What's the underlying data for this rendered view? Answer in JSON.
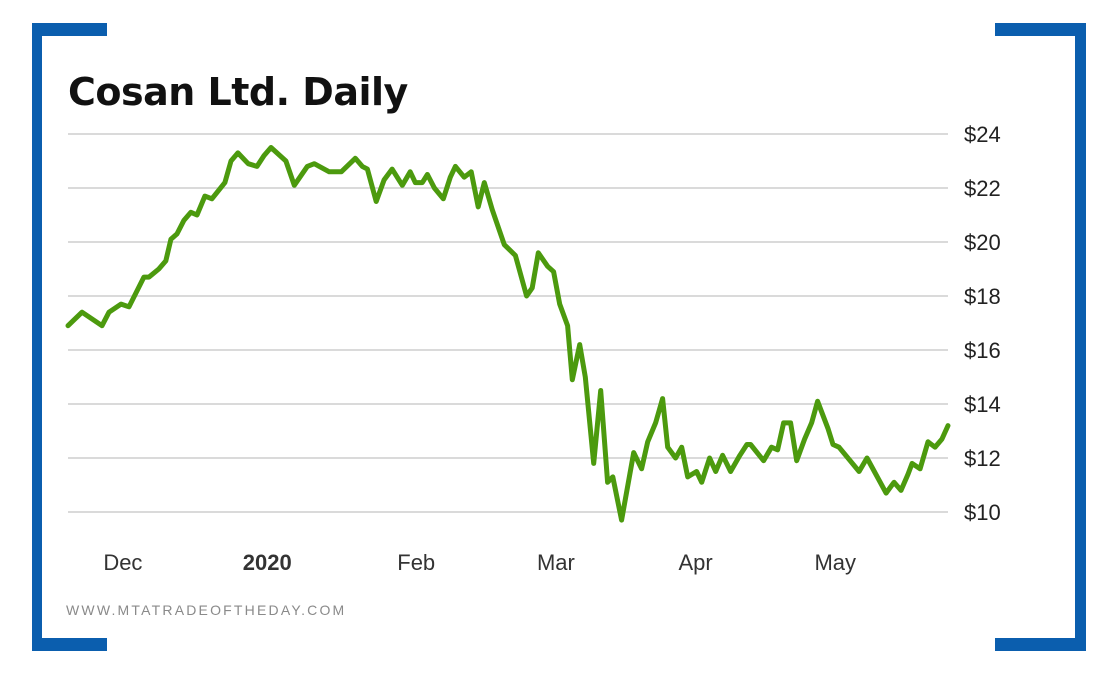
{
  "chart_data": {
    "type": "line",
    "title": "Cosan Ltd. Daily",
    "xlabel": "",
    "ylabel": "",
    "x_units": "days since Dec 1, 2019 (approx.)",
    "ylim": [
      10,
      24
    ],
    "yticks": [
      10,
      12,
      14,
      16,
      18,
      20,
      22,
      24
    ],
    "ytick_labels": [
      "$10",
      "$12",
      "$14",
      "$16",
      "$18",
      "$20",
      "$22",
      "$24"
    ],
    "xticks": [
      {
        "x": 0,
        "label": "Dec",
        "bold": false
      },
      {
        "x": 31,
        "label": "2020",
        "bold": true
      },
      {
        "x": 63,
        "label": "Feb",
        "bold": false
      },
      {
        "x": 93,
        "label": "Mar",
        "bold": false
      },
      {
        "x": 123,
        "label": "Apr",
        "bold": false
      },
      {
        "x": 153,
        "label": "May",
        "bold": false
      }
    ],
    "grid": true,
    "line_color": "#4c9a0e",
    "series": [
      {
        "name": "Cosan Ltd.",
        "x": [
          -10.5,
          -7.5,
          -3.2,
          -1.7,
          0.9,
          2.6,
          5.8,
          6.9,
          9.0,
          10.5,
          11.6,
          12.9,
          14.4,
          15.9,
          17.2,
          18.9,
          20.4,
          23.2,
          24.5,
          26.0,
          28.2,
          30.1,
          31.6,
          33.1,
          36.3,
          38.1,
          40.9,
          42.4,
          45.6,
          48.2,
          51.2,
          52.7,
          53.8,
          55.7,
          57.4,
          59.1,
          61.3,
          63.0,
          64.1,
          65.6,
          66.7,
          68.2,
          70.1,
          71.6,
          72.7,
          74.6,
          76.1,
          77.6,
          78.9,
          80.6,
          83.2,
          85.6,
          88.0,
          89.2,
          90.5,
          92.5,
          93.8,
          95.1,
          96.8,
          97.8,
          99.4,
          100.6,
          102.4,
          103.9,
          105.4,
          106.5,
          108.4,
          111.0,
          112.7,
          114.0,
          115.7,
          117.2,
          118.3,
          120.0,
          121.3,
          122.6,
          124.5,
          125.6,
          127.3,
          128.6,
          130.1,
          131.8,
          133.8,
          135.3,
          136.1,
          138.9,
          140.6,
          141.9,
          143.2,
          144.7,
          146.0,
          147.7,
          149.2,
          150.5,
          152.7,
          153.8,
          155.1,
          159.4,
          161.1,
          165.2,
          166.9,
          168.4,
          169.9,
          170.8,
          172.5,
          174.2,
          175.7,
          177.2,
          178.5
        ],
        "y": [
          16.9,
          17.4,
          16.9,
          17.4,
          17.7,
          17.6,
          18.7,
          18.7,
          19.0,
          19.3,
          20.1,
          20.3,
          20.8,
          21.1,
          21.0,
          21.7,
          21.6,
          22.2,
          23.0,
          23.3,
          22.9,
          22.8,
          23.2,
          23.5,
          23.0,
          22.1,
          22.8,
          22.9,
          22.6,
          22.6,
          23.1,
          22.8,
          22.7,
          21.5,
          22.3,
          22.7,
          22.1,
          22.6,
          22.2,
          22.2,
          22.5,
          22.0,
          21.6,
          22.4,
          22.8,
          22.4,
          22.6,
          21.3,
          22.2,
          21.2,
          19.9,
          19.5,
          18.0,
          18.3,
          19.6,
          19.1,
          18.9,
          17.7,
          16.9,
          14.9,
          16.2,
          15.0,
          11.8,
          14.5,
          11.1,
          11.3,
          9.7,
          12.2,
          11.6,
          12.6,
          13.3,
          14.2,
          12.4,
          12.0,
          12.4,
          11.3,
          11.5,
          11.1,
          12.0,
          11.5,
          12.1,
          11.5,
          12.1,
          12.5,
          12.5,
          11.9,
          12.4,
          12.3,
          13.3,
          13.3,
          11.9,
          12.7,
          13.3,
          14.1,
          13.1,
          12.5,
          12.4,
          11.5,
          12.0,
          10.7,
          11.1,
          10.8,
          11.4,
          11.8,
          11.6,
          12.6,
          12.4,
          12.7,
          13.2
        ]
      }
    ],
    "watermark": "WWW.MTATRADEOFTHEDAY.COM"
  }
}
